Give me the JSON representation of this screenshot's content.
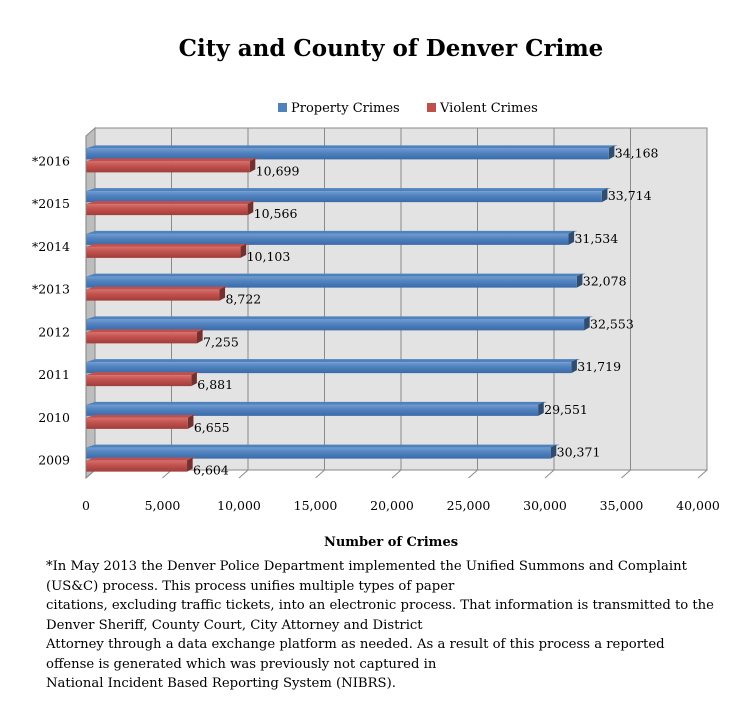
{
  "chart_data": {
    "type": "bar",
    "orientation": "horizontal",
    "title": "City and County of Denver Crime",
    "xlabel": "Number of Crimes",
    "ylabel": "",
    "categories": [
      "2009",
      "2010",
      "2011",
      "2012",
      "*2013",
      "*2014",
      "*2015",
      "*2016"
    ],
    "series": [
      {
        "name": "Property Crimes",
        "color": "#4f81bd",
        "values": [
          30371,
          29551,
          31719,
          32553,
          32078,
          31534,
          33714,
          34168
        ],
        "labels": [
          "30,371",
          "29,551",
          "31,719",
          "32,553",
          "32,078",
          "31,534",
          "33,714",
          "34,168"
        ]
      },
      {
        "name": "Violent Crimes",
        "color": "#c0504d",
        "values": [
          6604,
          6655,
          6881,
          7255,
          8722,
          10103,
          10566,
          10699
        ],
        "labels": [
          "6,604",
          "6,655",
          "6,881",
          "7,255",
          "8,722",
          "10,103",
          "10,566",
          "10,699"
        ]
      }
    ],
    "xlim": [
      0,
      40000
    ],
    "xticks": [
      0,
      5000,
      10000,
      15000,
      20000,
      25000,
      30000,
      35000,
      40000
    ],
    "xtick_labels": [
      "0",
      "5,000",
      "10,000",
      "15,000",
      "20,000",
      "25,000",
      "30,000",
      "35,000",
      "40,000"
    ],
    "grid": true,
    "legend_position": "top"
  },
  "footnote": [
    "*In May 2013 the Denver Police Department implemented the Unified Summons and Complaint",
    "(US&C) process. This process unifies multiple types of paper",
    "citations, excluding traffic tickets, into an electronic process. That information is transmitted to the",
    "Denver Sheriff, County Court, City Attorney and District",
    "Attorney through a data exchange platform as needed. As a result of this process a reported",
    "offense is generated which was previously not captured in",
    "National Incident Based Reporting System (NIBRS)."
  ]
}
